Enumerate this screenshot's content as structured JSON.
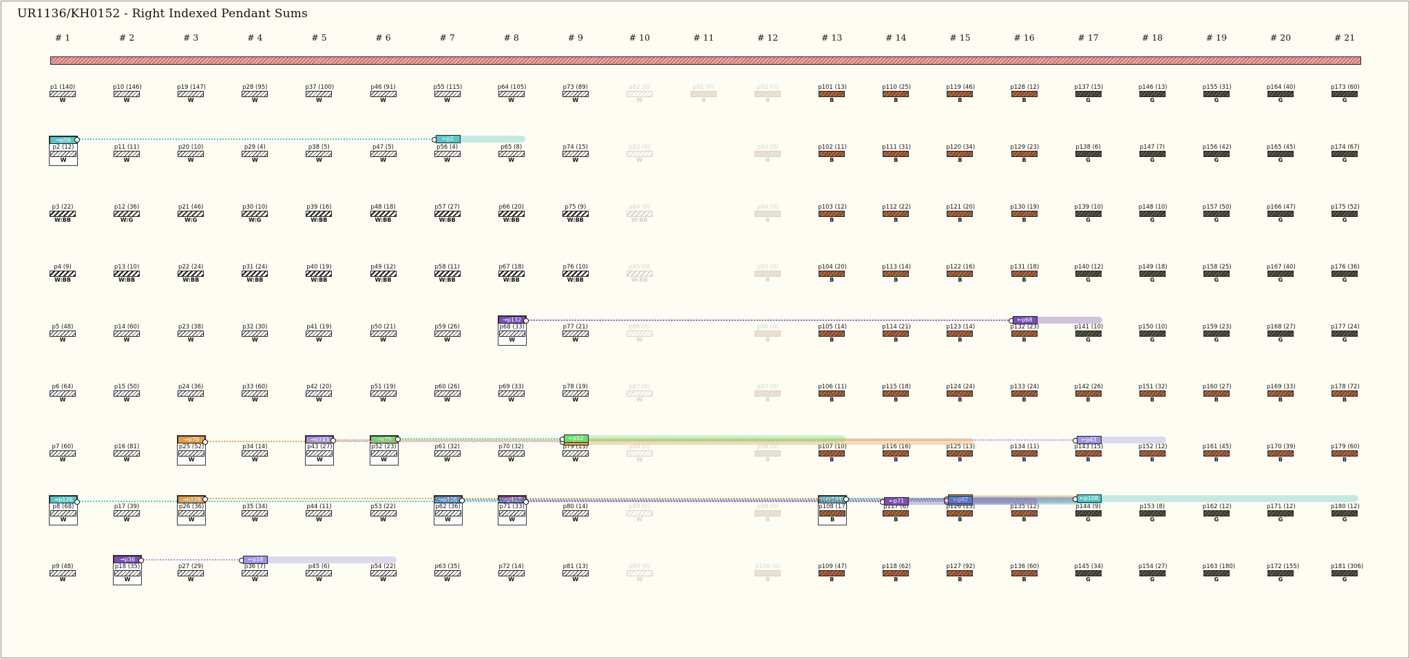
{
  "title": "UR1136/KH0152 - Right Indexed Pendant Sums",
  "colors": {
    "cord": "#e9a3a3",
    "W_fill": "#ffffff",
    "G_fill": "#3a3a2e",
    "B_fill": "#8a4a28",
    "teal": "#54c7c6",
    "orange": "#e89a44",
    "green": "#6fdc6f",
    "purple": "#7a4fb8",
    "lavender": "#9c92e8",
    "blue": "#4a84d6"
  },
  "columns": [
    "# 1",
    "# 2",
    "# 3",
    "# 4",
    "# 5",
    "# 6",
    "# 7",
    "# 8",
    "# 9",
    "# 10",
    "# 11",
    "# 12",
    "# 13",
    "# 14",
    "# 15",
    "# 16",
    "# 17",
    "# 18",
    "# 19",
    "# 20",
    "# 21"
  ],
  "rows": [
    [
      {
        "label": "p1 (140)",
        "color": "W"
      },
      {
        "label": "p10 (146)",
        "color": "W"
      },
      {
        "label": "p19 (147)",
        "color": "W"
      },
      {
        "label": "p28 (95)",
        "color": "W"
      },
      {
        "label": "p37 (100)",
        "color": "W"
      },
      {
        "label": "p46 (91)",
        "color": "W"
      },
      {
        "label": "p55 (115)",
        "color": "W"
      },
      {
        "label": "p64 (105)",
        "color": "W"
      },
      {
        "label": "p73 (89)",
        "color": "W"
      },
      {
        "label": "p82 (0)",
        "color": "W",
        "faded": true
      },
      {
        "label": "p91 (0)",
        "color": "B",
        "faded": true
      },
      {
        "label": "p92 (0)",
        "color": "B",
        "faded": true
      },
      {
        "label": "p101 (13)",
        "color": "B"
      },
      {
        "label": "p110 (25)",
        "color": "B"
      },
      {
        "label": "p119 (46)",
        "color": "B"
      },
      {
        "label": "p128 (12)",
        "color": "B"
      },
      {
        "label": "p137 (15)",
        "color": "G"
      },
      {
        "label": "p146 (13)",
        "color": "G"
      },
      {
        "label": "p155 (31)",
        "color": "G"
      },
      {
        "label": "p164 (40)",
        "color": "G"
      },
      {
        "label": "p173 (60)",
        "color": "G"
      }
    ],
    [
      {
        "label": "p2 (12)",
        "color": "W",
        "boxed": true,
        "tag": "→p56",
        "tagColor": "teal"
      },
      {
        "label": "p11 (11)",
        "color": "W"
      },
      {
        "label": "p20 (10)",
        "color": "W"
      },
      {
        "label": "p29 (4)",
        "color": "W"
      },
      {
        "label": "p38 (5)",
        "color": "W"
      },
      {
        "label": "p47 (5)",
        "color": "W"
      },
      {
        "label": "p56 (4)",
        "color": "W"
      },
      {
        "label": "p65 (8)",
        "color": "W"
      },
      {
        "label": "p74 (15)",
        "color": "W"
      },
      {
        "label": "p83 (0)",
        "color": "W",
        "faded": true
      },
      {
        "label": "",
        "color": "W",
        "hidden": true
      },
      {
        "label": "p93 (0)",
        "color": "B",
        "faded": true
      },
      {
        "label": "p102 (11)",
        "color": "B"
      },
      {
        "label": "p111 (31)",
        "color": "B"
      },
      {
        "label": "p120 (34)",
        "color": "B"
      },
      {
        "label": "p129 (23)",
        "color": "B"
      },
      {
        "label": "p138 (6)",
        "color": "G"
      },
      {
        "label": "p147 (7)",
        "color": "G"
      },
      {
        "label": "p156 (42)",
        "color": "G"
      },
      {
        "label": "p165 (45)",
        "color": "G"
      },
      {
        "label": "p174 (67)",
        "color": "G"
      }
    ],
    [
      {
        "label": "p3 (22)",
        "color": "W:BB"
      },
      {
        "label": "p12 (36)",
        "color": "W:G"
      },
      {
        "label": "p21 (46)",
        "color": "W:G"
      },
      {
        "label": "p30 (10)",
        "color": "W:G"
      },
      {
        "label": "p39 (16)",
        "color": "W:BB"
      },
      {
        "label": "p48 (18)",
        "color": "W:BB"
      },
      {
        "label": "p57 (27)",
        "color": "W:BB"
      },
      {
        "label": "p66 (20)",
        "color": "W:BB"
      },
      {
        "label": "p75 (9)",
        "color": "W:BB"
      },
      {
        "label": "p84 (0)",
        "color": "W:BB",
        "faded": true
      },
      {
        "label": "",
        "color": "W",
        "hidden": true
      },
      {
        "label": "p94 (0)",
        "color": "B",
        "faded": true
      },
      {
        "label": "p103 (12)",
        "color": "B"
      },
      {
        "label": "p112 (22)",
        "color": "B"
      },
      {
        "label": "p121 (20)",
        "color": "B"
      },
      {
        "label": "p130 (19)",
        "color": "B"
      },
      {
        "label": "p139 (10)",
        "color": "G"
      },
      {
        "label": "p148 (10)",
        "color": "G"
      },
      {
        "label": "p157 (50)",
        "color": "G"
      },
      {
        "label": "p166 (47)",
        "color": "G"
      },
      {
        "label": "p175 (52)",
        "color": "G"
      }
    ],
    [
      {
        "label": "p4 (9)",
        "color": "W:BB"
      },
      {
        "label": "p13 (10)",
        "color": "W:BB"
      },
      {
        "label": "p22 (24)",
        "color": "W:BB"
      },
      {
        "label": "p31 (24)",
        "color": "W:BB"
      },
      {
        "label": "p40 (19)",
        "color": "W:BB"
      },
      {
        "label": "p49 (12)",
        "color": "W:BB"
      },
      {
        "label": "p58 (11)",
        "color": "W:BB"
      },
      {
        "label": "p67 (18)",
        "color": "W:BB"
      },
      {
        "label": "p76 (10)",
        "color": "W:BB"
      },
      {
        "label": "p85 (0)",
        "color": "W:BB",
        "faded": true
      },
      {
        "label": "",
        "color": "W",
        "hidden": true
      },
      {
        "label": "p95 (0)",
        "color": "B",
        "faded": true
      },
      {
        "label": "p104 (20)",
        "color": "B"
      },
      {
        "label": "p113 (14)",
        "color": "B"
      },
      {
        "label": "p122 (16)",
        "color": "B"
      },
      {
        "label": "p131 (18)",
        "color": "B"
      },
      {
        "label": "p140 (12)",
        "color": "G"
      },
      {
        "label": "p149 (18)",
        "color": "G"
      },
      {
        "label": "p158 (25)",
        "color": "G"
      },
      {
        "label": "p167 (40)",
        "color": "G"
      },
      {
        "label": "p176 (36)",
        "color": "G"
      }
    ],
    [
      {
        "label": "p5 (48)",
        "color": "W"
      },
      {
        "label": "p14 (60)",
        "color": "W"
      },
      {
        "label": "p23 (38)",
        "color": "W"
      },
      {
        "label": "p32 (30)",
        "color": "W"
      },
      {
        "label": "p41 (19)",
        "color": "W"
      },
      {
        "label": "p50 (21)",
        "color": "W"
      },
      {
        "label": "p59 (26)",
        "color": "W"
      },
      {
        "label": "p68 (33)",
        "color": "W",
        "boxed": true,
        "tag": "→p132",
        "tagColor": "purple"
      },
      {
        "label": "p77 (21)",
        "color": "W"
      },
      {
        "label": "p86 (0)",
        "color": "W",
        "faded": true
      },
      {
        "label": "",
        "color": "W",
        "hidden": true
      },
      {
        "label": "p96 (0)",
        "color": "B",
        "faded": true
      },
      {
        "label": "p105 (14)",
        "color": "B"
      },
      {
        "label": "p114 (21)",
        "color": "B"
      },
      {
        "label": "p123 (14)",
        "color": "B"
      },
      {
        "label": "p132 (23)",
        "color": "B"
      },
      {
        "label": "p141 (10)",
        "color": "G"
      },
      {
        "label": "p150 (10)",
        "color": "G"
      },
      {
        "label": "p159 (23)",
        "color": "G"
      },
      {
        "label": "p168 (27)",
        "color": "G"
      },
      {
        "label": "p177 (24)",
        "color": "G"
      }
    ],
    [
      {
        "label": "p6 (64)",
        "color": "W"
      },
      {
        "label": "p15 (50)",
        "color": "W"
      },
      {
        "label": "p24 (36)",
        "color": "W"
      },
      {
        "label": "p33 (60)",
        "color": "W"
      },
      {
        "label": "p42 (20)",
        "color": "W"
      },
      {
        "label": "p51 (19)",
        "color": "W"
      },
      {
        "label": "p60 (26)",
        "color": "W"
      },
      {
        "label": "p69 (33)",
        "color": "W"
      },
      {
        "label": "p78 (19)",
        "color": "W"
      },
      {
        "label": "p87 (0)",
        "color": "W",
        "faded": true
      },
      {
        "label": "",
        "color": "W",
        "hidden": true
      },
      {
        "label": "p97 (0)",
        "color": "B",
        "faded": true
      },
      {
        "label": "p106 (11)",
        "color": "B"
      },
      {
        "label": "p115 (18)",
        "color": "B"
      },
      {
        "label": "p124 (24)",
        "color": "B"
      },
      {
        "label": "p133 (24)",
        "color": "B"
      },
      {
        "label": "p142 (26)",
        "color": "B"
      },
      {
        "label": "p151 (32)",
        "color": "B"
      },
      {
        "label": "p160 (27)",
        "color": "B"
      },
      {
        "label": "p169 (33)",
        "color": "B"
      },
      {
        "label": "p178 (72)",
        "color": "B"
      }
    ],
    [
      {
        "label": "p7 (60)",
        "color": "W"
      },
      {
        "label": "p16 (81)",
        "color": "W"
      },
      {
        "label": "p25 (52)",
        "color": "W",
        "boxed": true,
        "tag": "→p79",
        "tagColor": "orange"
      },
      {
        "label": "p34 (14)",
        "color": "W"
      },
      {
        "label": "p43 (27)",
        "color": "W",
        "boxed": true,
        "tag": "→p143",
        "tagColor": "lavender"
      },
      {
        "label": "p52 (23)",
        "color": "W",
        "boxed": true,
        "tag": "→p79",
        "tagColor": "green"
      },
      {
        "label": "p61 (32)",
        "color": "W"
      },
      {
        "label": "p70 (32)",
        "color": "W"
      },
      {
        "label": "p79 (13)",
        "color": "W"
      },
      {
        "label": "p88 (0)",
        "color": "W",
        "faded": true
      },
      {
        "label": "",
        "color": "W",
        "hidden": true
      },
      {
        "label": "p98 (0)",
        "color": "B",
        "faded": true
      },
      {
        "label": "p107 (10)",
        "color": "B"
      },
      {
        "label": "p116 (16)",
        "color": "B"
      },
      {
        "label": "p125 (13)",
        "color": "B"
      },
      {
        "label": "p134 (11)",
        "color": "B"
      },
      {
        "label": "p143 (15)",
        "color": "B"
      },
      {
        "label": "p152 (12)",
        "color": "B"
      },
      {
        "label": "p161 (45)",
        "color": "B"
      },
      {
        "label": "p170 (39)",
        "color": "B"
      },
      {
        "label": "p179 (60)",
        "color": "B"
      }
    ],
    [
      {
        "label": "p8 (68)",
        "color": "W",
        "boxed": true,
        "tag": "→p126",
        "tagColor": "teal"
      },
      {
        "label": "p17 (39)",
        "color": "W"
      },
      {
        "label": "p26 (36)",
        "color": "W",
        "boxed": true,
        "tag": "→p126",
        "tagColor": "orange"
      },
      {
        "label": "p35 (34)",
        "color": "W"
      },
      {
        "label": "p44 (11)",
        "color": "W"
      },
      {
        "label": "p53 (22)",
        "color": "W"
      },
      {
        "label": "p62 (36)",
        "color": "W",
        "boxed": true,
        "tag": "→p126",
        "tagColor": "blue"
      },
      {
        "label": "p71 (33)",
        "color": "W",
        "boxed": true,
        "tag": "→p117",
        "tagColor": "purple"
      },
      {
        "label": "p80 (14)",
        "color": "W"
      },
      {
        "label": "p89 (0)",
        "color": "W",
        "faded": true
      },
      {
        "label": "",
        "color": "W",
        "hidden": true
      },
      {
        "label": "p99 (0)",
        "color": "B",
        "faded": true
      },
      {
        "label": "p108 (17)",
        "color": "B",
        "boxed": true,
        "tag": "→p144",
        "tagColor": "teal"
      },
      {
        "label": "p117 (6)",
        "color": "B"
      },
      {
        "label": "p126 (15)",
        "color": "B"
      },
      {
        "label": "p135 (12)",
        "color": "B"
      },
      {
        "label": "p144 (9)",
        "color": "G"
      },
      {
        "label": "p153 (8)",
        "color": "G"
      },
      {
        "label": "p162 (12)",
        "color": "G"
      },
      {
        "label": "p171 (12)",
        "color": "G"
      },
      {
        "label": "p180 (12)",
        "color": "G"
      }
    ],
    [
      {
        "label": "p9 (48)",
        "color": "W"
      },
      {
        "label": "p18 (35)",
        "color": "W",
        "boxed": true,
        "tag": "→p36",
        "tagColor": "purple"
      },
      {
        "label": "p27 (29)",
        "color": "W"
      },
      {
        "label": "p36 (7)",
        "color": "W"
      },
      {
        "label": "p45 (6)",
        "color": "W"
      },
      {
        "label": "p54 (22)",
        "color": "W"
      },
      {
        "label": "p63 (35)",
        "color": "W"
      },
      {
        "label": "p72 (14)",
        "color": "W"
      },
      {
        "label": "p81 (13)",
        "color": "W"
      },
      {
        "label": "p90 (0)",
        "color": "W",
        "faded": true
      },
      {
        "label": "",
        "color": "W",
        "hidden": true
      },
      {
        "label": "p100 (0)",
        "color": "B",
        "faded": true
      },
      {
        "label": "p109 (47)",
        "color": "B"
      },
      {
        "label": "p118 (62)",
        "color": "B"
      },
      {
        "label": "p127 (92)",
        "color": "B"
      },
      {
        "label": "p136 (60)",
        "color": "B"
      },
      {
        "label": "p145 (34)",
        "color": "G"
      },
      {
        "label": "p154 (27)",
        "color": "G"
      },
      {
        "label": "p163 (180)",
        "color": "G"
      },
      {
        "label": "p172 (155)",
        "color": "G"
      },
      {
        "label": "p181 (306)",
        "color": "G"
      }
    ]
  ],
  "links": [
    {
      "from": [
        0,
        1
      ],
      "to": [
        6,
        1
      ],
      "color": "teal",
      "targetTag": "←p2",
      "endCol": 7
    },
    {
      "from": [
        7,
        4
      ],
      "to": [
        15,
        4
      ],
      "color": "purple",
      "targetTag": "←p68",
      "endCol": 16
    },
    {
      "from": [
        2,
        6
      ],
      "to": [
        8,
        6
      ],
      "color": "orange",
      "targetTag": "←p25",
      "endCol": 14
    },
    {
      "from": [
        5,
        6
      ],
      "to": [
        8,
        6
      ],
      "color": "green",
      "targetTag": "←p52",
      "endCol": 12
    },
    {
      "from": [
        4,
        6
      ],
      "to": [
        16,
        6
      ],
      "color": "lavender",
      "targetTag": "←p43",
      "endCol": 17
    },
    {
      "from": [
        0,
        7
      ],
      "to": [
        14,
        7
      ],
      "color": "teal",
      "targetTag": "←p8",
      "endCol": 16
    },
    {
      "from": [
        2,
        7
      ],
      "to": [
        14,
        7
      ],
      "color": "orange",
      "targetTag": "←p26",
      "endCol": 16
    },
    {
      "from": [
        6,
        7
      ],
      "to": [
        14,
        7
      ],
      "color": "blue",
      "targetTag": "←p62",
      "endCol": 16
    },
    {
      "from": [
        7,
        7
      ],
      "to": [
        13,
        7
      ],
      "color": "purple",
      "targetTag": "←p71",
      "endCol": 15
    },
    {
      "from": [
        12,
        7
      ],
      "to": [
        16,
        7
      ],
      "color": "teal",
      "targetTag": "←p108",
      "endCol": 20
    },
    {
      "from": [
        1,
        8
      ],
      "to": [
        3,
        8
      ],
      "color": "lavender",
      "targetTag": "←p18",
      "endCol": 5
    }
  ]
}
